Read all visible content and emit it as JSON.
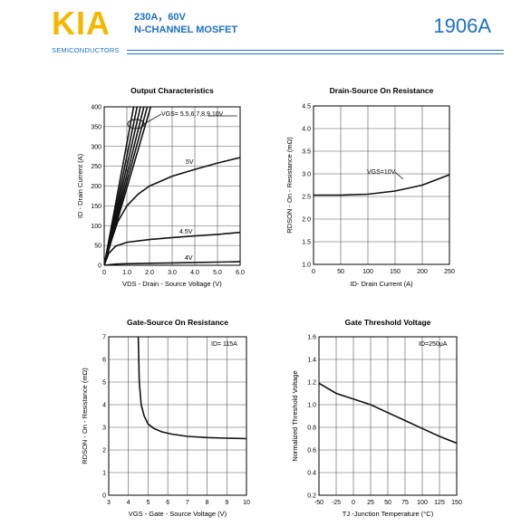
{
  "header": {
    "logo": "KIA",
    "logo_sub": "SEMICONDUCTORS",
    "line1": "230A，60V",
    "line2": "N-CHANNEL MOSFET",
    "part_number": "1906A",
    "accent_color": "#1a6fc9",
    "logo_color": "#f5b800"
  },
  "chart_data": [
    {
      "type": "line",
      "title": "Output Characteristics",
      "xlabel": "V₀ₛ - Drain - Source Voltage (V)",
      "xlabel_text": "VDS - Drain - Source Voltage (V)",
      "ylabel": "ID - Drain Current (A)",
      "xlim": [
        0,
        6
      ],
      "ylim": [
        0,
        400
      ],
      "x_ticks": [
        "0",
        "1.0",
        "2.0",
        "3.0",
        "4.0",
        "5.0",
        "6.0"
      ],
      "y_ticks": [
        "0",
        "50",
        "100",
        "150",
        "200",
        "250",
        "300",
        "350",
        "400"
      ],
      "grid": true,
      "annotations": [
        "VGS= 5.5,6,7,8,9,10V",
        "5V",
        "4.5V",
        "4V"
      ],
      "series": [
        {
          "name": "5V",
          "x": [
            0,
            0.3,
            0.6,
            1.0,
            1.5,
            2.0,
            3.0,
            4.0,
            5.0,
            6.0
          ],
          "y": [
            0,
            60,
            110,
            150,
            180,
            200,
            225,
            242,
            258,
            272
          ]
        },
        {
          "name": "4.5V",
          "x": [
            0,
            0.2,
            0.5,
            1.0,
            2.0,
            3.0,
            4.0,
            5.0,
            6.0
          ],
          "y": [
            0,
            30,
            48,
            58,
            65,
            70,
            74,
            78,
            83
          ]
        },
        {
          "name": "4V",
          "x": [
            0,
            0.5,
            1.0,
            2.0,
            3.0,
            4.0,
            5.0,
            6.0
          ],
          "y": [
            0,
            3,
            4,
            5,
            6,
            7,
            8,
            9
          ]
        },
        {
          "x": [
            0,
            1.3
          ],
          "y": [
            0,
            400
          ]
        },
        {
          "x": [
            0,
            1.45
          ],
          "y": [
            0,
            400
          ]
        },
        {
          "x": [
            0,
            1.6
          ],
          "y": [
            0,
            400
          ]
        },
        {
          "x": [
            0,
            1.75
          ],
          "y": [
            0,
            400
          ]
        },
        {
          "x": [
            0,
            1.9
          ],
          "y": [
            0,
            400
          ]
        },
        {
          "x": [
            0,
            2.05
          ],
          "y": [
            0,
            400
          ]
        }
      ]
    },
    {
      "type": "line",
      "title": "Drain-Source On Resistance",
      "xlabel": "ID- Drain Current (A)",
      "ylabel": "RDSON - On - Resistance (mΩ)",
      "xlim": [
        0,
        250
      ],
      "ylim": [
        1.0,
        4.5
      ],
      "x_ticks": [
        "0",
        "50",
        "100",
        "150",
        "200",
        "250"
      ],
      "y_ticks": [
        "1.0",
        "1.5",
        "2.0",
        "2.5",
        "3.0",
        "3.5",
        "4.0",
        "4.5"
      ],
      "grid": true,
      "annotations": [
        "VGS=10V"
      ],
      "series": [
        {
          "name": "VGS=10V",
          "x": [
            0,
            50,
            100,
            150,
            200,
            250
          ],
          "y": [
            2.53,
            2.53,
            2.55,
            2.62,
            2.75,
            2.98
          ]
        }
      ]
    },
    {
      "type": "line",
      "title": "Gate-Source On Resistance",
      "xlabel": "VGS - Gate - Source Voltage (V)",
      "ylabel": "RDSON - On - Resistance (mΩ)",
      "xlim": [
        3,
        10
      ],
      "ylim": [
        0,
        7
      ],
      "x_ticks": [
        "3",
        "4",
        "5",
        "6",
        "7",
        "8",
        "9",
        "10"
      ],
      "y_ticks": [
        "0",
        "1",
        "2",
        "3",
        "4",
        "5",
        "6",
        "7"
      ],
      "grid": true,
      "annotations": [
        "ID= 115A"
      ],
      "series": [
        {
          "name": "ID= 115A",
          "x": [
            4.5,
            4.55,
            4.65,
            4.8,
            5.0,
            5.3,
            5.7,
            6.2,
            7.0,
            8.0,
            9.0,
            10.0
          ],
          "y": [
            7.0,
            5.0,
            4.0,
            3.5,
            3.15,
            2.95,
            2.8,
            2.7,
            2.6,
            2.55,
            2.52,
            2.5
          ]
        }
      ]
    },
    {
      "type": "line",
      "title": "Gate Threshold Voltage",
      "xlabel": "TJ -Junction Temperature (°C)",
      "ylabel": "Normalized Threshold Voltage",
      "xlim": [
        -50,
        150
      ],
      "ylim": [
        0.2,
        1.6
      ],
      "x_ticks": [
        "-50",
        "-25",
        "0",
        "25",
        "50",
        "75",
        "100",
        "125",
        "150"
      ],
      "y_ticks": [
        "0.2",
        "0.4",
        "0.6",
        "0.8",
        "1.0",
        "1.2",
        "1.4",
        "1.6"
      ],
      "grid": true,
      "annotations": [
        "ID=250μA"
      ],
      "series": [
        {
          "name": "ID=250μA",
          "x": [
            -50,
            -25,
            0,
            25,
            50,
            75,
            100,
            125,
            150
          ],
          "y": [
            1.19,
            1.1,
            1.05,
            1.0,
            0.93,
            0.86,
            0.79,
            0.72,
            0.66
          ]
        }
      ]
    }
  ]
}
